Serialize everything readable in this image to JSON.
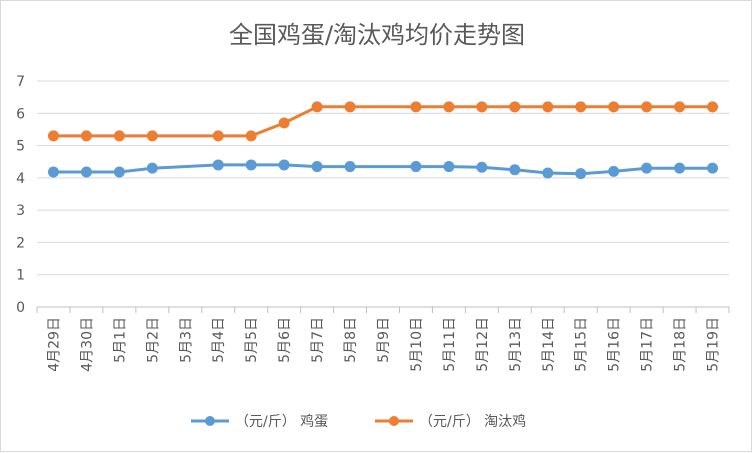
{
  "chart_data": {
    "type": "line",
    "title": "全国鸡蛋/淘汰鸡均价走势图",
    "categories": [
      "4月29日",
      "4月30日",
      "5月1日",
      "5月2日",
      "5月3日",
      "5月4日",
      "5月5日",
      "5月6日",
      "5月7日",
      "5月8日",
      "5月9日",
      "5月10日",
      "5月11日",
      "5月12日",
      "5月13日",
      "5月14日",
      "5月15日",
      "5月16日",
      "5月17日",
      "5月18日",
      "5月19日"
    ],
    "x": [
      0,
      1,
      2,
      3,
      5,
      6,
      7,
      8,
      9,
      11,
      12,
      13,
      14,
      15,
      16,
      17,
      18,
      19,
      20
    ],
    "ylim": [
      0,
      7
    ],
    "yticks": [
      0,
      1,
      2,
      3,
      4,
      5,
      6,
      7
    ],
    "grid": true,
    "legend_position": "bottom",
    "series": [
      {
        "name": "（元/斤） 鸡蛋",
        "color": "#5B9BD5",
        "values": [
          4.18,
          4.18,
          4.18,
          4.3,
          4.4,
          4.4,
          4.4,
          4.35,
          4.35,
          4.35,
          4.35,
          4.33,
          4.25,
          4.15,
          4.13,
          4.2,
          4.3,
          4.3,
          4.3
        ]
      },
      {
        "name": "（元/斤） 淘汰鸡",
        "color": "#ED7D31",
        "values": [
          5.3,
          5.3,
          5.3,
          5.3,
          5.3,
          5.3,
          5.7,
          6.2,
          6.2,
          6.2,
          6.2,
          6.2,
          6.2,
          6.2,
          6.2,
          6.2,
          6.2,
          6.2,
          6.2
        ]
      }
    ]
  }
}
